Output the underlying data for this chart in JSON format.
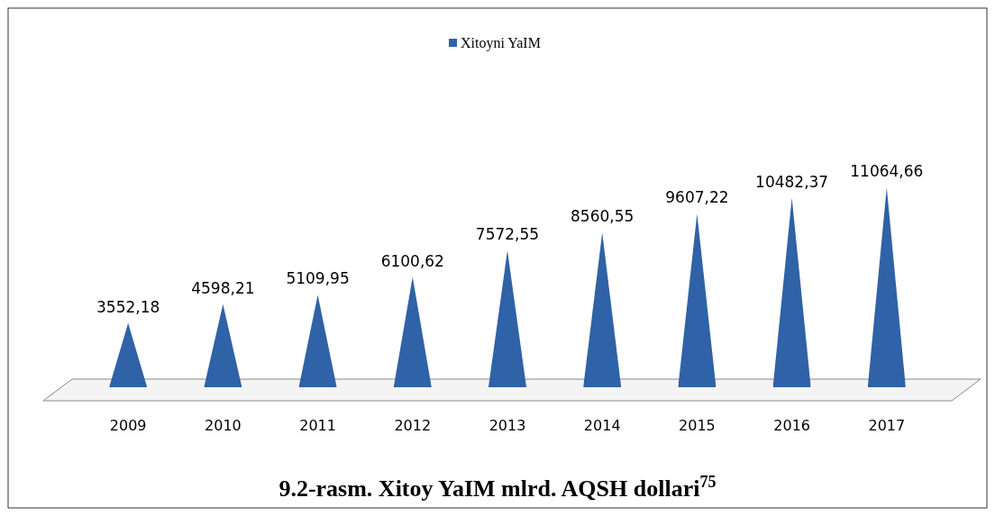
{
  "chart_data": {
    "type": "bar",
    "title": "9.2-rasm. Xitoy YaIM mlrd. AQSH dollari$^{75}$",
    "categories": [
      "2009",
      "2010",
      "2011",
      "2012",
      "2013",
      "2014",
      "2015",
      "2016",
      "2017"
    ],
    "series": [
      {
        "name": "Xitoyni YaIM",
        "color": "#2f62a6",
        "values": [
          3552.18,
          4598.21,
          5109.95,
          6100.62,
          7572.55,
          8560.55,
          9607.22,
          10482.37,
          11064.66
        ],
        "value_labels": [
          "3552,18",
          "4598,21",
          "5109,95",
          "6100,62",
          "7572,55",
          "8560,55",
          "9607,22",
          "10482,37",
          "11064,66"
        ]
      }
    ],
    "legend": "top"
  }
}
